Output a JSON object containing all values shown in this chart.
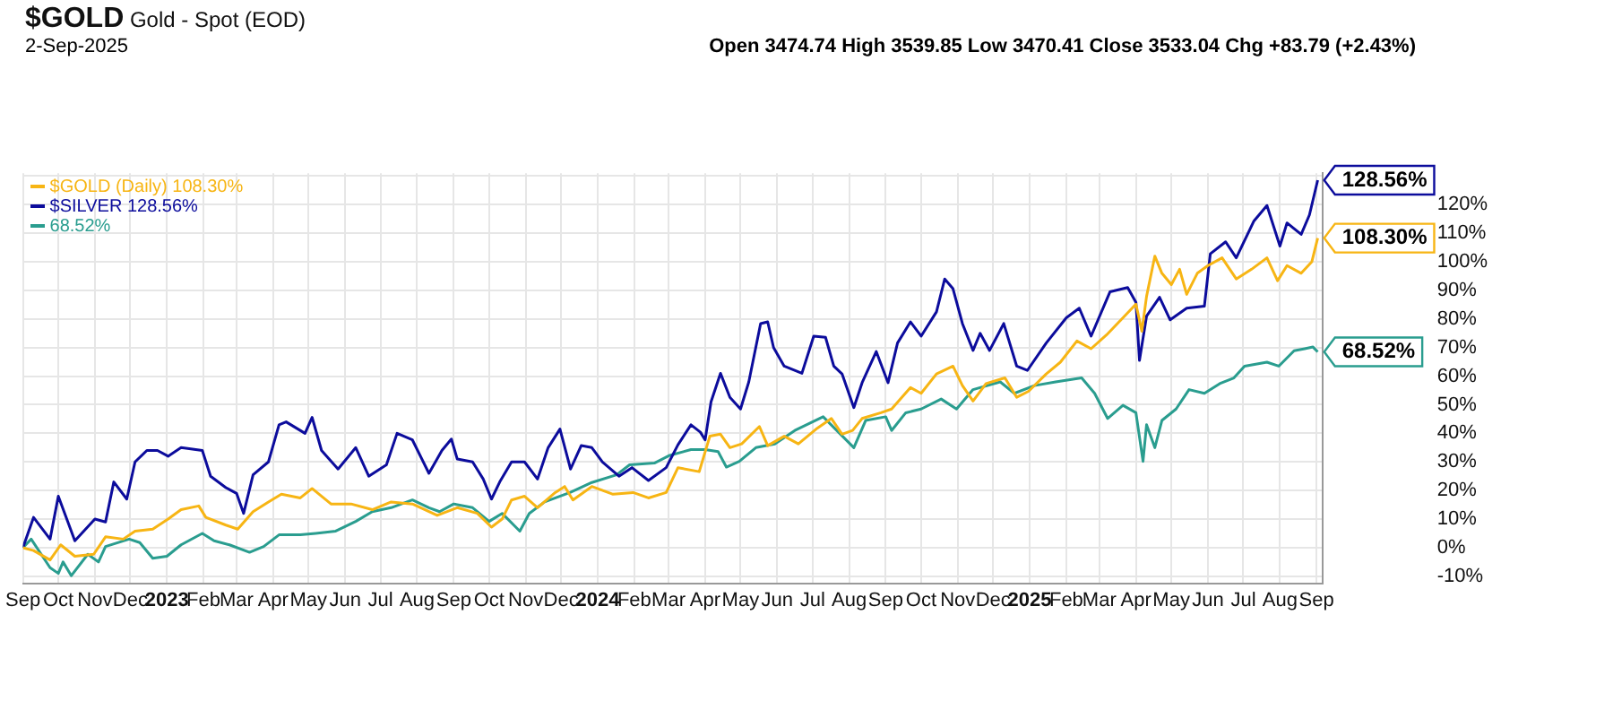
{
  "chart_data": {
    "type": "line",
    "title": "$GOLD",
    "subtitle": "Gold - Spot (EOD)",
    "annotations": [
      "2-Sep-2025",
      "Open 3474.74  High 3539.85  Low 3470.41  Close 3533.04  Chg +83.79 (+2.43%)"
    ],
    "xlim": [
      "2022-09-01",
      "2025-09-06"
    ],
    "xticks": [
      {
        "value": "2022-09-01",
        "label": "Sep"
      },
      {
        "value": "2022-10-01",
        "label": "Oct"
      },
      {
        "value": "2022-11-01",
        "label": "Nov"
      },
      {
        "value": "2022-12-01",
        "label": "Dec"
      },
      {
        "value": "2023-01-01",
        "label": "2023"
      },
      {
        "value": "2023-02-01",
        "label": "Feb"
      },
      {
        "value": "2023-03-01",
        "label": "Mar"
      },
      {
        "value": "2023-04-01",
        "label": "Apr"
      },
      {
        "value": "2023-05-01",
        "label": "May"
      },
      {
        "value": "2023-06-01",
        "label": "Jun"
      },
      {
        "value": "2023-07-01",
        "label": "Jul"
      },
      {
        "value": "2023-08-01",
        "label": "Aug"
      },
      {
        "value": "2023-09-01",
        "label": "Sep"
      },
      {
        "value": "2023-10-01",
        "label": "Oct"
      },
      {
        "value": "2023-11-01",
        "label": "Nov"
      },
      {
        "value": "2023-12-01",
        "label": "Dec"
      },
      {
        "value": "2024-01-01",
        "label": "2024"
      },
      {
        "value": "2024-02-01",
        "label": "Feb"
      },
      {
        "value": "2024-03-01",
        "label": "Mar"
      },
      {
        "value": "2024-04-01",
        "label": "Apr"
      },
      {
        "value": "2024-05-01",
        "label": "May"
      },
      {
        "value": "2024-06-01",
        "label": "Jun"
      },
      {
        "value": "2024-07-01",
        "label": "Jul"
      },
      {
        "value": "2024-08-01",
        "label": "Aug"
      },
      {
        "value": "2024-09-01",
        "label": "Sep"
      },
      {
        "value": "2024-10-01",
        "label": "Oct"
      },
      {
        "value": "2024-11-01",
        "label": "Nov"
      },
      {
        "value": "2024-12-01",
        "label": "Dec"
      },
      {
        "value": "2025-01-01",
        "label": "2025"
      },
      {
        "value": "2025-02-01",
        "label": "Feb"
      },
      {
        "value": "2025-03-01",
        "label": "Mar"
      },
      {
        "value": "2025-04-01",
        "label": "Apr"
      },
      {
        "value": "2025-05-01",
        "label": "May"
      },
      {
        "value": "2025-06-01",
        "label": "Jun"
      },
      {
        "value": "2025-07-01",
        "label": "Jul"
      },
      {
        "value": "2025-08-01",
        "label": "Aug"
      },
      {
        "value": "2025-09-01",
        "label": "Sep"
      }
    ],
    "ylim": [
      -12.5,
      131
    ],
    "yticks": [
      {
        "value": -10,
        "label": "-10%"
      },
      {
        "value": 0,
        "label": "0%"
      },
      {
        "value": 10,
        "label": "10%"
      },
      {
        "value": 20,
        "label": "20%"
      },
      {
        "value": 30,
        "label": "30%"
      },
      {
        "value": 40,
        "label": "40%"
      },
      {
        "value": 50,
        "label": "50%"
      },
      {
        "value": 60,
        "label": "60%"
      },
      {
        "value": 70,
        "label": "70%"
      },
      {
        "value": 80,
        "label": "80%"
      },
      {
        "value": 90,
        "label": "90%"
      },
      {
        "value": 100,
        "label": "100%"
      },
      {
        "value": 110,
        "label": "110%"
      },
      {
        "value": 120,
        "label": "120%"
      },
      {
        "value": 130,
        "label": null
      }
    ],
    "grid": true,
    "legend": "top left",
    "marker": "none",
    "line_style": "solid",
    "series": [
      {
        "name": "$GOLD (Daily) 108.30%",
        "color": "#f7b514",
        "x": [
          "2022-09-01",
          "2022-09-10",
          "2022-09-24",
          "2022-10-03",
          "2022-10-15",
          "2022-10-31",
          "2022-11-10",
          "2022-11-25",
          "2022-12-05",
          "2022-12-20",
          "2023-01-02",
          "2023-01-13",
          "2023-01-28",
          "2023-02-03",
          "2023-02-20",
          "2023-03-02",
          "2023-03-15",
          "2023-03-28",
          "2023-04-08",
          "2023-04-24",
          "2023-05-04",
          "2023-05-20",
          "2023-06-06",
          "2023-06-24",
          "2023-07-10",
          "2023-07-28",
          "2023-08-18",
          "2023-09-04",
          "2023-09-21",
          "2023-10-03",
          "2023-10-12",
          "2023-10-20",
          "2023-10-31",
          "2023-11-11",
          "2023-11-26",
          "2023-12-04",
          "2023-12-11",
          "2023-12-27",
          "2024-01-14",
          "2024-01-31",
          "2024-02-13",
          "2024-02-28",
          "2024-03-09",
          "2024-03-27",
          "2024-04-05",
          "2024-04-14",
          "2024-04-22",
          "2024-05-02",
          "2024-05-17",
          "2024-05-24",
          "2024-06-07",
          "2024-06-19",
          "2024-07-05",
          "2024-07-17",
          "2024-07-26",
          "2024-08-04",
          "2024-08-12",
          "2024-08-28",
          "2024-09-06",
          "2024-09-22",
          "2024-10-01",
          "2024-10-14",
          "2024-10-28",
          "2024-11-05",
          "2024-11-14",
          "2024-11-25",
          "2024-12-11",
          "2024-12-21",
          "2024-12-31",
          "2025-01-15",
          "2025-01-27",
          "2025-02-10",
          "2025-02-22",
          "2025-03-07",
          "2025-03-21",
          "2025-04-01",
          "2025-04-06",
          "2025-04-10",
          "2025-04-17",
          "2025-04-23",
          "2025-05-01",
          "2025-05-08",
          "2025-05-14",
          "2025-05-23",
          "2025-06-01",
          "2025-06-13",
          "2025-06-25",
          "2025-07-08",
          "2025-07-21",
          "2025-07-30",
          "2025-08-07",
          "2025-08-19",
          "2025-08-28",
          "2025-09-02"
        ],
        "values": [
          0,
          -1,
          -4.3,
          1,
          -3,
          -2.3,
          3.8,
          3,
          5.8,
          6.5,
          10,
          13.3,
          14.6,
          10.6,
          7.9,
          6.5,
          12.6,
          16,
          18.7,
          17.4,
          20.7,
          15.3,
          15.3,
          13.3,
          16,
          15.3,
          11.3,
          14,
          12,
          7.2,
          10,
          16.7,
          18,
          14,
          19.3,
          21.4,
          16.7,
          21.4,
          18.7,
          19.3,
          17.4,
          19.3,
          28,
          26.6,
          39,
          39.7,
          35,
          36.3,
          42.4,
          35.7,
          39,
          36.3,
          41.8,
          45.2,
          39.7,
          41,
          45.2,
          47.2,
          48.5,
          56,
          54,
          60.8,
          63.5,
          56.7,
          51.3,
          57.4,
          59.4,
          52.6,
          54.7,
          60.8,
          64.9,
          72.3,
          69.6,
          74.4,
          80.4,
          85.2,
          75.7,
          87.9,
          102,
          96,
          92,
          97.4,
          88.6,
          96,
          98.7,
          101.4,
          94,
          97.4,
          101.4,
          93.4,
          98.7,
          96,
          100,
          108.3
        ],
        "value_labels": [
          null,
          null,
          null,
          null,
          null,
          null,
          null,
          null,
          null,
          null,
          null,
          null,
          null,
          null,
          null,
          null,
          null,
          null,
          null,
          null,
          null,
          null,
          null,
          null,
          null,
          null,
          null,
          null,
          null,
          null,
          null,
          null,
          null,
          null,
          null,
          null,
          null,
          null,
          null,
          null,
          null,
          null,
          null,
          null,
          null,
          null,
          null,
          null,
          null,
          null,
          null,
          null,
          null,
          null,
          null,
          null,
          null,
          null,
          null,
          null,
          null,
          null,
          null,
          null,
          null,
          null,
          null,
          null,
          null,
          null,
          null,
          null,
          null,
          null,
          null,
          null,
          null,
          null,
          null,
          null,
          null,
          null,
          null,
          null,
          null,
          null,
          null,
          null,
          null,
          null,
          null,
          null,
          null,
          "108.30%"
        ]
      },
      {
        "name": "$SILVER 128.56%",
        "color": "#0c0c9c",
        "x": [
          "2022-09-01",
          "2022-09-10",
          "2022-09-24",
          "2022-10-01",
          "2022-10-15",
          "2022-11-01",
          "2022-11-10",
          "2022-11-17",
          "2022-11-28",
          "2022-12-05",
          "2022-12-15",
          "2022-12-24",
          "2023-01-02",
          "2023-01-13",
          "2023-01-31",
          "2023-02-07",
          "2023-02-20",
          "2023-03-01",
          "2023-03-07",
          "2023-03-15",
          "2023-03-28",
          "2023-04-06",
          "2023-04-12",
          "2023-04-28",
          "2023-05-04",
          "2023-05-12",
          "2023-05-26",
          "2023-06-10",
          "2023-06-21",
          "2023-07-06",
          "2023-07-15",
          "2023-07-28",
          "2023-08-11",
          "2023-08-22",
          "2023-08-30",
          "2023-09-04",
          "2023-09-17",
          "2023-09-26",
          "2023-10-03",
          "2023-10-10",
          "2023-10-20",
          "2023-10-31",
          "2023-11-11",
          "2023-11-20",
          "2023-11-30",
          "2023-12-09",
          "2023-12-18",
          "2023-12-27",
          "2024-01-05",
          "2024-01-19",
          "2024-01-30",
          "2024-02-13",
          "2024-02-28",
          "2024-03-09",
          "2024-03-20",
          "2024-03-28",
          "2024-04-01",
          "2024-04-06",
          "2024-04-14",
          "2024-04-22",
          "2024-05-01",
          "2024-05-08",
          "2024-05-18",
          "2024-05-24",
          "2024-05-29",
          "2024-06-07",
          "2024-06-22",
          "2024-07-02",
          "2024-07-12",
          "2024-07-19",
          "2024-07-26",
          "2024-08-05",
          "2024-08-12",
          "2024-08-24",
          "2024-09-03",
          "2024-09-11",
          "2024-09-22",
          "2024-10-01",
          "2024-10-14",
          "2024-10-21",
          "2024-10-28",
          "2024-11-05",
          "2024-11-14",
          "2024-11-20",
          "2024-11-28",
          "2024-12-10",
          "2024-12-21",
          "2024-12-30",
          "2025-01-15",
          "2025-02-01",
          "2025-02-12",
          "2025-02-22",
          "2025-03-10",
          "2025-03-25",
          "2025-04-01",
          "2025-04-04",
          "2025-04-10",
          "2025-04-21",
          "2025-04-30",
          "2025-05-14",
          "2025-05-29",
          "2025-06-03",
          "2025-06-16",
          "2025-06-25",
          "2025-07-10",
          "2025-07-21",
          "2025-08-01",
          "2025-08-07",
          "2025-08-19",
          "2025-08-26",
          "2025-09-02"
        ],
        "values": [
          0,
          10.6,
          3,
          18,
          2.4,
          10,
          9,
          23,
          17,
          30,
          34,
          34,
          32,
          35,
          34,
          25,
          21,
          19,
          12,
          25.5,
          30,
          43,
          44,
          40,
          45.6,
          34,
          27.5,
          35,
          25,
          29,
          40,
          37.7,
          26,
          34,
          38,
          31,
          30,
          24,
          17,
          23,
          30,
          30,
          24,
          35,
          41.5,
          27.5,
          35.7,
          35,
          30,
          25,
          28,
          23.5,
          28,
          36,
          43,
          40.4,
          37.7,
          51,
          61,
          52.6,
          48.5,
          58,
          78.4,
          79,
          70,
          63.5,
          61,
          74,
          73.6,
          63.5,
          60.8,
          49,
          57.7,
          68.6,
          57.7,
          71.6,
          79,
          74,
          82.5,
          94,
          90.6,
          78.4,
          69,
          75,
          69,
          78.4,
          63.5,
          62,
          71.6,
          80.4,
          83.8,
          74,
          89.5,
          91,
          85.8,
          65.5,
          81,
          87.6,
          79.7,
          83.8,
          84.5,
          102.8,
          107,
          101.4,
          114.3,
          119.7,
          105.5,
          113.6,
          109.6,
          116.4,
          128.56
        ],
        "value_labels": [
          null,
          null,
          null,
          null,
          null,
          null,
          null,
          null,
          null,
          null,
          null,
          null,
          null,
          null,
          null,
          null,
          null,
          null,
          null,
          null,
          null,
          null,
          null,
          null,
          null,
          null,
          null,
          null,
          null,
          null,
          null,
          null,
          null,
          null,
          null,
          null,
          null,
          null,
          null,
          null,
          null,
          null,
          null,
          null,
          null,
          null,
          null,
          null,
          null,
          null,
          null,
          null,
          null,
          null,
          null,
          null,
          null,
          null,
          null,
          null,
          null,
          null,
          null,
          null,
          null,
          null,
          null,
          null,
          null,
          null,
          null,
          null,
          null,
          null,
          null,
          null,
          null,
          null,
          null,
          null,
          null,
          null,
          null,
          null,
          null,
          null,
          null,
          null,
          null,
          null,
          null,
          null,
          null,
          null,
          null,
          null,
          null,
          null,
          null,
          null,
          null,
          null,
          null,
          null,
          null,
          null,
          null,
          null,
          null,
          null,
          "128.56%"
        ]
      },
      {
        "name": "68.52%",
        "color": "#2a9d8f",
        "x": [
          "2022-09-01",
          "2022-09-08",
          "2022-09-24",
          "2022-10-01",
          "2022-10-05",
          "2022-10-12",
          "2022-10-26",
          "2022-11-04",
          "2022-11-10",
          "2022-11-30",
          "2022-12-09",
          "2022-12-20",
          "2023-01-01",
          "2023-01-13",
          "2023-01-31",
          "2023-02-10",
          "2023-02-23",
          "2023-03-12",
          "2023-03-24",
          "2023-04-06",
          "2023-04-24",
          "2023-05-07",
          "2023-05-24",
          "2023-06-10",
          "2023-06-24",
          "2023-07-10",
          "2023-07-28",
          "2023-08-11",
          "2023-08-20",
          "2023-09-01",
          "2023-09-17",
          "2023-10-01",
          "2023-10-12",
          "2023-10-27",
          "2023-11-04",
          "2023-11-17",
          "2023-12-09",
          "2023-12-27",
          "2024-01-17",
          "2024-01-28",
          "2024-02-18",
          "2024-03-02",
          "2024-03-20",
          "2024-04-01",
          "2024-04-12",
          "2024-04-19",
          "2024-04-30",
          "2024-05-14",
          "2024-05-30",
          "2024-06-16",
          "2024-07-10",
          "2024-07-23",
          "2024-08-05",
          "2024-08-15",
          "2024-09-01",
          "2024-09-06",
          "2024-09-18",
          "2024-10-01",
          "2024-10-18",
          "2024-10-31",
          "2024-11-14",
          "2024-12-07",
          "2024-12-19",
          "2025-01-05",
          "2025-01-23",
          "2025-02-14",
          "2025-02-25",
          "2025-03-08",
          "2025-03-21",
          "2025-04-01",
          "2025-04-07",
          "2025-04-10",
          "2025-04-17",
          "2025-04-23",
          "2025-05-05",
          "2025-05-16",
          "2025-05-29",
          "2025-06-11",
          "2025-06-23",
          "2025-07-02",
          "2025-07-21",
          "2025-07-31",
          "2025-08-13",
          "2025-08-22",
          "2025-08-29",
          "2025-09-02"
        ],
        "values": [
          0,
          3,
          -7,
          -9,
          -5,
          -9.8,
          -2.3,
          -5,
          0.4,
          3,
          1.8,
          -3.7,
          -3,
          1,
          5,
          2.4,
          1,
          -1.6,
          0.4,
          4.5,
          4.5,
          5,
          5.8,
          9.2,
          12.6,
          14,
          16.7,
          14,
          12.6,
          15.3,
          14,
          9.2,
          12,
          5.8,
          12,
          16,
          19.4,
          22.8,
          25.5,
          29,
          29.6,
          32.3,
          34.3,
          34.3,
          33.6,
          28.2,
          30.2,
          35,
          36.3,
          41,
          45.8,
          40.4,
          35,
          44.5,
          45.8,
          41,
          47.2,
          48.5,
          52,
          48.5,
          55.3,
          58,
          54,
          56.7,
          58,
          59.4,
          54,
          45.2,
          49.8,
          47.2,
          30.2,
          43,
          35,
          44.5,
          48.5,
          55.3,
          54,
          57.4,
          59.4,
          63.5,
          64.9,
          63.5,
          68.9,
          69.6,
          70.2,
          68.52
        ],
        "value_labels": [
          null,
          null,
          null,
          null,
          null,
          null,
          null,
          null,
          null,
          null,
          null,
          null,
          null,
          null,
          null,
          null,
          null,
          null,
          null,
          null,
          null,
          null,
          null,
          null,
          null,
          null,
          null,
          null,
          null,
          null,
          null,
          null,
          null,
          null,
          null,
          null,
          null,
          null,
          null,
          null,
          null,
          null,
          null,
          null,
          null,
          null,
          null,
          null,
          null,
          null,
          null,
          null,
          null,
          null,
          null,
          null,
          null,
          null,
          null,
          null,
          null,
          null,
          null,
          null,
          null,
          null,
          null,
          null,
          null,
          null,
          null,
          null,
          null,
          null,
          null,
          null,
          null,
          null,
          null,
          null,
          null,
          null,
          null,
          null,
          null,
          "68.52%"
        ]
      }
    ]
  }
}
